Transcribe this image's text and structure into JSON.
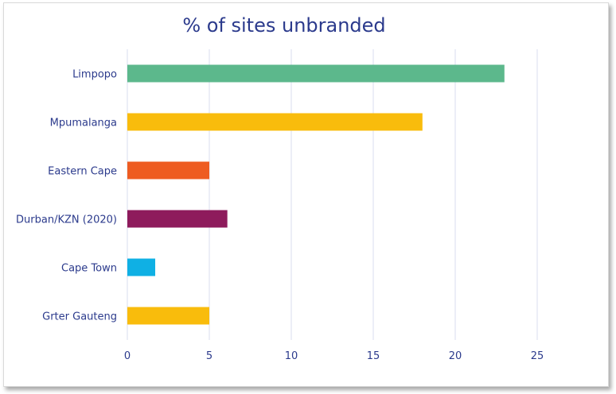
{
  "chart_data": {
    "type": "bar",
    "orientation": "horizontal",
    "title": "% of sites unbranded",
    "xlabel": "",
    "ylabel": "",
    "categories": [
      "Limpopo",
      "Mpumalanga",
      "Eastern Cape",
      "Durban/KZN (2020)",
      "Cape Town",
      "Grter Gauteng"
    ],
    "values": [
      23,
      18,
      5,
      6.1,
      1.7,
      5
    ],
    "colors": [
      "#5cb88c",
      "#f9bc0c",
      "#ee5c21",
      "#8e1b5c",
      "#0fb0e4",
      "#f9bc0c"
    ],
    "xlim": [
      0,
      27
    ],
    "x_ticks": [
      0,
      5,
      10,
      15,
      20,
      25
    ],
    "grid": true,
    "legend": "none"
  }
}
